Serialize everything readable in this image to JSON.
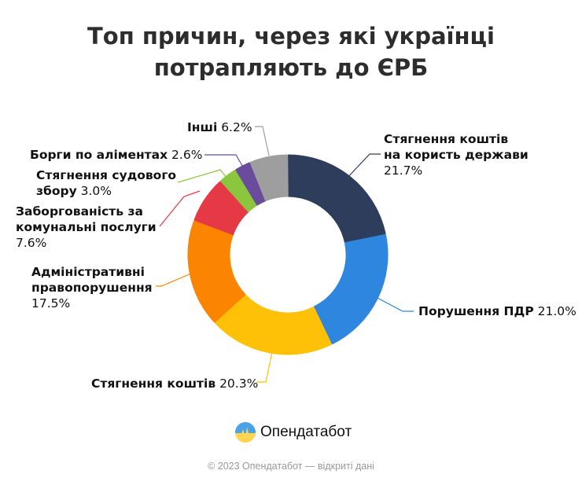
{
  "title_lines": [
    "Топ причин, через які українці",
    "потрапляють до ЄРБ"
  ],
  "chart_data": {
    "type": "pie",
    "donut": true,
    "title": "Топ причин, через які українці потрапляють до ЄРБ",
    "unit": "%",
    "slices": [
      {
        "name": "Стягнення коштів на користь держави",
        "label_lines": [
          "Стягнення коштів",
          "на користь держави"
        ],
        "value": 21.7,
        "value_label": "21.7%",
        "color": "#2e3d5c"
      },
      {
        "name": "Порушення ПДР",
        "label_lines": [
          "Порушення ПДР"
        ],
        "value": 21.0,
        "value_label": "21.0%",
        "color": "#2e86de"
      },
      {
        "name": "Стягнення коштів",
        "label_lines": [
          "Стягнення коштів"
        ],
        "value": 20.3,
        "value_label": "20.3%",
        "color": "#ffc107"
      },
      {
        "name": "Адміністративні правопорушення",
        "label_lines": [
          "Адміністративні",
          "правопорушення"
        ],
        "value": 17.5,
        "value_label": "17.5%",
        "color": "#fb8500"
      },
      {
        "name": "Заборгованість за комунальні послуги",
        "label_lines": [
          "Заборгованість за",
          "комунальні послуги"
        ],
        "value": 7.6,
        "value_label": "7.6%",
        "color": "#e63946"
      },
      {
        "name": "Стягнення судового збору",
        "label_lines": [
          "Стягнення судового",
          "збору"
        ],
        "value": 3.0,
        "value_label": "3.0%",
        "color": "#8cc63f"
      },
      {
        "name": "Борги по аліментах",
        "label_lines": [
          "Борги по аліментах"
        ],
        "value": 2.6,
        "value_label": "2.6%",
        "color": "#6a4c9c"
      },
      {
        "name": "Інші",
        "label_lines": [
          "Інші"
        ],
        "value": 6.2,
        "value_label": "6.2%",
        "color": "#9e9e9e"
      }
    ]
  },
  "logo": {
    "text": "Опендатабот"
  },
  "footer": "© 2023 Опендатабот — відкриті дані"
}
